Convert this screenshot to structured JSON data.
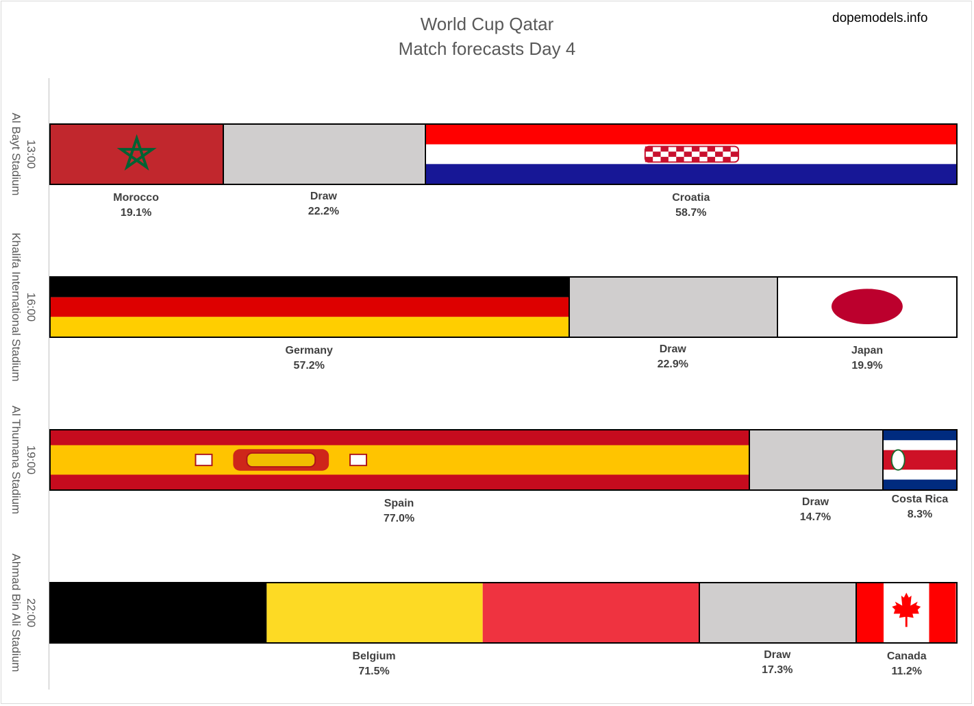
{
  "header": {
    "title_line1": "World Cup Qatar",
    "title_line2": "Match forecasts Day 4",
    "source": "dopemodels.info"
  },
  "chart_data": {
    "type": "bar",
    "orientation": "horizontal",
    "stacked": true,
    "normalized_percent": true,
    "grid": false,
    "legend": "none",
    "matches": [
      {
        "time": "13:00",
        "stadium": "Al Bayt Stadium",
        "outcomes": [
          {
            "label": "Morocco",
            "value": 19.1,
            "display": "19.1%",
            "flag": "morocco-flag",
            "color": "#c1272d"
          },
          {
            "label": "Draw",
            "value": 22.2,
            "display": "22.2%",
            "flag": "draw",
            "color": "#d0cece"
          },
          {
            "label": "Croatia",
            "value": 58.7,
            "display": "58.7%",
            "flag": "croatia-flag",
            "color": "#171796"
          }
        ]
      },
      {
        "time": "16:00",
        "stadium": "Khalifa International Stadium",
        "outcomes": [
          {
            "label": "Germany",
            "value": 57.2,
            "display": "57.2%",
            "flag": "germany-flag",
            "color": "#dd0000"
          },
          {
            "label": "Draw",
            "value": 22.9,
            "display": "22.9%",
            "flag": "draw",
            "color": "#d0cece"
          },
          {
            "label": "Japan",
            "value": 19.9,
            "display": "19.9%",
            "flag": "japan-flag",
            "color": "#bc002d"
          }
        ]
      },
      {
        "time": "19:00",
        "stadium": "Al Thumana Stadium",
        "outcomes": [
          {
            "label": "Spain",
            "value": 77.0,
            "display": "77.0%",
            "flag": "spain-flag",
            "color": "#c60b1e"
          },
          {
            "label": "Draw",
            "value": 14.7,
            "display": "14.7%",
            "flag": "draw",
            "color": "#d0cece"
          },
          {
            "label": "Costa Rica",
            "value": 8.3,
            "display": "8.3%",
            "flag": "costa-rica-flag",
            "color": "#ce1126"
          }
        ]
      },
      {
        "time": "22:00",
        "stadium": "Ahmad Bin Ali Stadium",
        "outcomes": [
          {
            "label": "Belgium",
            "value": 71.5,
            "display": "71.5%",
            "flag": "belgium-flag",
            "color": "#ef3340"
          },
          {
            "label": "Draw",
            "value": 17.3,
            "display": "17.3%",
            "flag": "draw",
            "color": "#d0cece"
          },
          {
            "label": "Canada",
            "value": 11.2,
            "display": "11.2%",
            "flag": "canada-flag",
            "color": "#ff0000"
          }
        ]
      }
    ]
  }
}
